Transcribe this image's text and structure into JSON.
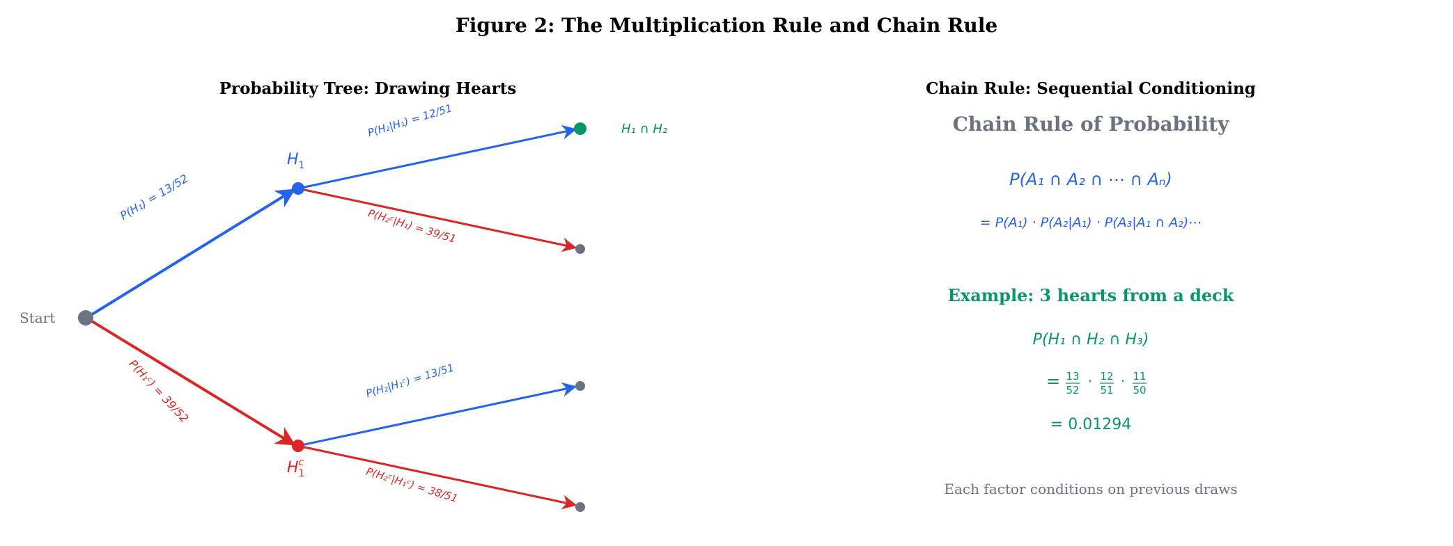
{
  "figure_title": "Figure 2: The Multiplication Rule and Chain Rule",
  "colors": {
    "blue": "#2563eb",
    "red": "#dc2626",
    "green": "#059669",
    "gray": "#6b7280",
    "black": "#000000"
  },
  "tree": {
    "title": "Probability Tree: Drawing Hearts",
    "start_label": "Start",
    "node_h1": "H",
    "node_h1_sub": "1",
    "node_h1c": "H",
    "node_h1c_sup": "c",
    "node_h1c_sub": "1",
    "outcome_label": "H₁ ∩ H₂",
    "branch_h1": "P(H₁) = 13/52",
    "branch_h1c": "P(H₁ᶜ) = 39/52",
    "branch_h2_given_h1": "P(H₂|H₁) = 12/51",
    "branch_h2c_given_h1": "P(H₂ᶜ|H₁) = 39/51",
    "branch_h2_given_h1c": "P(H₂|H₁ᶜ) = 13/51",
    "branch_h2c_given_h1c": "P(H₂ᶜ|H₁ᶜ) = 38/51"
  },
  "chain": {
    "title": "Chain Rule: Sequential Conditioning",
    "heading": "Chain Rule of Probability",
    "formula_lhs": "P(A₁ ∩ A₂ ∩ ⋯ ∩ Aₙ)",
    "formula_rhs": "= P(A₁) · P(A₂|A₁) · P(A₃|A₁ ∩ A₂)⋯",
    "example_title": "Example: 3 hearts from a deck",
    "example_lhs": "P(H₁ ∩ H₂ ∩ H₃)",
    "example_eq": "=",
    "fractions": [
      {
        "num": "13",
        "den": "52"
      },
      {
        "num": "12",
        "den": "51"
      },
      {
        "num": "11",
        "den": "50"
      }
    ],
    "dot": "·",
    "result": "= 0.01294",
    "footnote": "Each factor conditions on previous draws"
  }
}
